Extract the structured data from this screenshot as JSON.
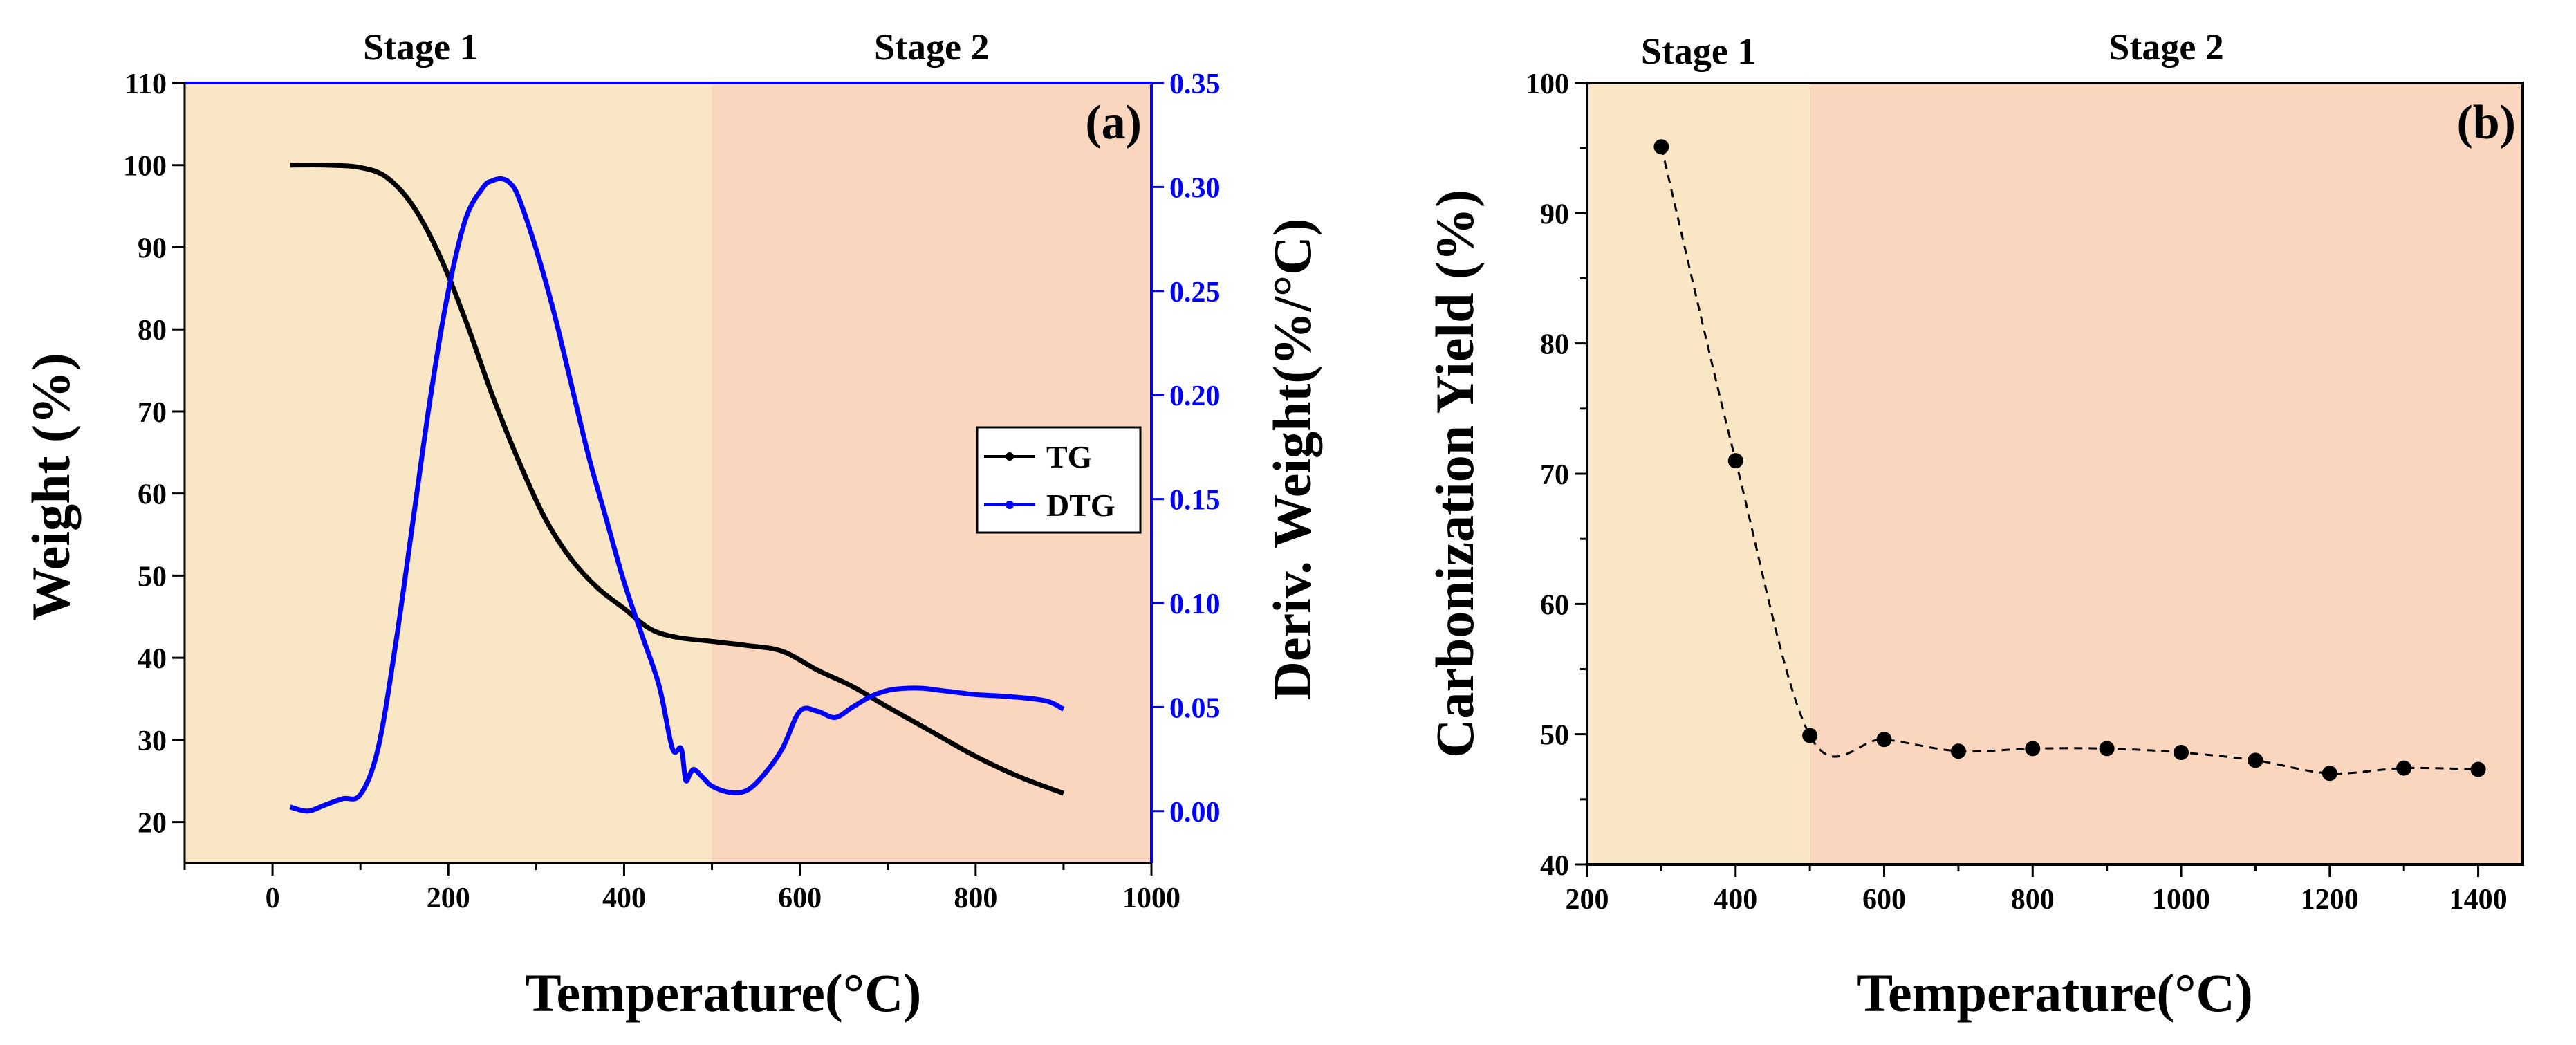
{
  "colors": {
    "stage1_bg": "#f8e6c4",
    "stage2_bg": "#f9d6bd",
    "tg": "#000000",
    "dtg": "#0000ff",
    "axis": "#000000",
    "right_axis": "#0000ff"
  },
  "chart_data": [
    {
      "type": "line",
      "panel_label": "(a)",
      "xlabel": "Temperature(°C)",
      "ylabel": "Weight (%)",
      "y2label": "Deriv. Weight(%/°C)",
      "xlim": [
        -100,
        1000
      ],
      "ylim": [
        15,
        110
      ],
      "y2lim": [
        -0.025,
        0.35
      ],
      "x_ticks": [
        0,
        200,
        400,
        600,
        800,
        1000
      ],
      "x_tick_labels": [
        "0",
        "200",
        "400",
        "600",
        "800",
        "1000"
      ],
      "y_ticks": [
        20,
        30,
        40,
        50,
        60,
        70,
        80,
        90,
        100,
        110
      ],
      "y_tick_labels": [
        "20",
        "30",
        "40",
        "50",
        "60",
        "70",
        "80",
        "90",
        "100",
        "110"
      ],
      "y2_ticks": [
        0.0,
        0.05,
        0.1,
        0.15,
        0.2,
        0.25,
        0.3,
        0.35
      ],
      "y2_tick_labels": [
        "0.00",
        "0.05",
        "0.10",
        "0.15",
        "0.20",
        "0.25",
        "0.30",
        "0.35"
      ],
      "stages": [
        {
          "label": "Stage 1",
          "from": -100,
          "to": 500
        },
        {
          "label": "Stage 2",
          "from": 500,
          "to": 1000
        }
      ],
      "legend": [
        "TG",
        "DTG"
      ],
      "series": [
        {
          "name": "TG",
          "axis": "left",
          "x": [
            20,
            60,
            100,
            130,
            160,
            190,
            220,
            250,
            280,
            310,
            340,
            370,
            400,
            430,
            460,
            500,
            540,
            580,
            620,
            660,
            700,
            750,
            800,
            850,
            900
          ],
          "y": [
            100,
            100,
            99.7,
            98.5,
            95,
            89,
            81,
            72,
            64,
            57,
            52,
            48.5,
            46,
            43.5,
            42.5,
            42,
            41.5,
            40.8,
            38.5,
            36.5,
            34,
            31,
            28,
            25.5,
            23.5
          ]
        },
        {
          "name": "DTG",
          "axis": "right",
          "x": [
            20,
            40,
            60,
            80,
            100,
            120,
            140,
            160,
            180,
            200,
            220,
            240,
            250,
            260,
            270,
            280,
            300,
            320,
            340,
            360,
            380,
            400,
            420,
            440,
            455,
            465,
            470,
            475,
            480,
            490,
            500,
            520,
            540,
            560,
            580,
            600,
            620,
            640,
            660,
            680,
            700,
            720,
            740,
            760,
            780,
            800,
            840,
            880,
            900
          ],
          "y": [
            0.002,
            0.0,
            0.003,
            0.006,
            0.008,
            0.03,
            0.08,
            0.14,
            0.2,
            0.25,
            0.285,
            0.3,
            0.303,
            0.304,
            0.302,
            0.295,
            0.27,
            0.24,
            0.205,
            0.17,
            0.14,
            0.11,
            0.085,
            0.06,
            0.03,
            0.03,
            0.015,
            0.018,
            0.02,
            0.016,
            0.012,
            0.009,
            0.01,
            0.018,
            0.03,
            0.048,
            0.048,
            0.045,
            0.05,
            0.055,
            0.058,
            0.059,
            0.059,
            0.058,
            0.057,
            0.056,
            0.055,
            0.053,
            0.049
          ]
        }
      ]
    },
    {
      "type": "scatter",
      "panel_label": "(b)",
      "xlabel": "Temperature(°C)",
      "ylabel": "Carbonization Yield (%)",
      "xlim": [
        200,
        1460
      ],
      "ylim": [
        40,
        100
      ],
      "x_ticks": [
        200,
        400,
        600,
        800,
        1000,
        1200,
        1400
      ],
      "x_tick_labels": [
        "200",
        "400",
        "600",
        "800",
        "1000",
        "1200",
        "1400"
      ],
      "y_ticks": [
        40,
        50,
        60,
        70,
        80,
        90,
        100
      ],
      "y_tick_labels": [
        "40",
        "50",
        "60",
        "70",
        "80",
        "90",
        "100"
      ],
      "stages": [
        {
          "label": "Stage 1",
          "from": 200,
          "to": 500
        },
        {
          "label": "Stage 2",
          "from": 500,
          "to": 1460
        }
      ],
      "series": [
        {
          "name": "Carbonization Yield",
          "x": [
            300,
            400,
            500,
            600,
            700,
            800,
            900,
            1000,
            1100,
            1200,
            1300,
            1400
          ],
          "y": [
            95.1,
            71,
            49.9,
            49.6,
            48.7,
            48.9,
            48.9,
            48.6,
            48,
            47,
            47.4,
            47.3
          ]
        }
      ]
    }
  ]
}
